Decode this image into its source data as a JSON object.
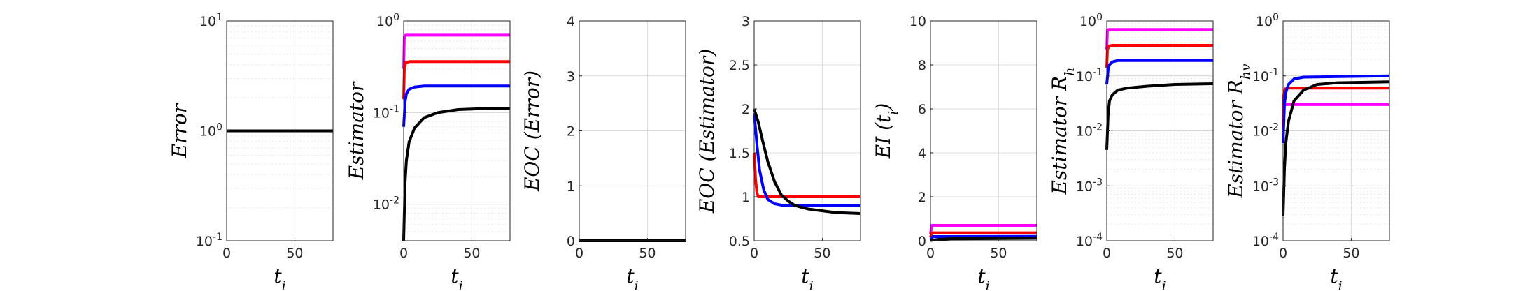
{
  "chart_data": [
    {
      "type": "line",
      "ylabel": "Error",
      "xlabel": "t",
      "xlabel_sub": "i",
      "yscale": "log",
      "xlim": [
        0,
        78
      ],
      "ylim": [
        0.1,
        10
      ],
      "xticks": [
        {
          "v": 0,
          "label": "0"
        },
        {
          "v": 50,
          "label": "50"
        }
      ],
      "yticks": [
        {
          "v": 0.1,
          "base": "10",
          "exp": "-1"
        },
        {
          "v": 1,
          "base": "10",
          "exp": "0"
        },
        {
          "v": 10,
          "base": "10",
          "exp": "1"
        }
      ],
      "grid": true,
      "series": [
        {
          "color": "#000000",
          "points": [
            [
              0,
              1
            ],
            [
              78,
              1
            ]
          ]
        }
      ]
    },
    {
      "type": "line",
      "ylabel": "Estimator",
      "xlabel": "t",
      "xlabel_sub": "i",
      "yscale": "log",
      "xlim": [
        0,
        78
      ],
      "ylim": [
        0.004,
        1
      ],
      "xticks": [
        {
          "v": 0,
          "label": "0"
        },
        {
          "v": 50,
          "label": "50"
        }
      ],
      "yticks": [
        {
          "v": 0.01,
          "base": "10",
          "exp": "-2"
        },
        {
          "v": 0.1,
          "base": "10",
          "exp": "-1"
        },
        {
          "v": 1,
          "base": "10",
          "exp": "0"
        }
      ],
      "grid": true,
      "series": [
        {
          "color": "#ff00ff",
          "points": [
            [
              0,
              0.3
            ],
            [
              0.5,
              0.68
            ],
            [
              1.5,
              0.7
            ],
            [
              78,
              0.7
            ]
          ]
        },
        {
          "color": "#ff0000",
          "points": [
            [
              0,
              0.14
            ],
            [
              0.5,
              0.3
            ],
            [
              1.5,
              0.35
            ],
            [
              4,
              0.36
            ],
            [
              78,
              0.36
            ]
          ]
        },
        {
          "color": "#0000ff",
          "points": [
            [
              0,
              0.07
            ],
            [
              1,
              0.13
            ],
            [
              2,
              0.16
            ],
            [
              4,
              0.18
            ],
            [
              8,
              0.19
            ],
            [
              15,
              0.195
            ],
            [
              78,
              0.195
            ]
          ]
        },
        {
          "color": "#000000",
          "points": [
            [
              0,
              0.004
            ],
            [
              1,
              0.017
            ],
            [
              2,
              0.03
            ],
            [
              4,
              0.048
            ],
            [
              8,
              0.068
            ],
            [
              15,
              0.088
            ],
            [
              25,
              0.1
            ],
            [
              40,
              0.108
            ],
            [
              55,
              0.11
            ],
            [
              78,
              0.111
            ]
          ]
        }
      ]
    },
    {
      "type": "line",
      "ylabel": "EOC (Error)",
      "xlabel": "t",
      "xlabel_sub": "i",
      "yscale": "linear",
      "xlim": [
        0,
        78
      ],
      "ylim": [
        0,
        4
      ],
      "xticks": [
        {
          "v": 0,
          "label": "0"
        },
        {
          "v": 50,
          "label": "50"
        }
      ],
      "yticks": [
        {
          "v": 0,
          "label": "0"
        },
        {
          "v": 1,
          "label": "1"
        },
        {
          "v": 2,
          "label": "2"
        },
        {
          "v": 3,
          "label": "3"
        },
        {
          "v": 4,
          "label": "4"
        }
      ],
      "grid": true,
      "series": [
        {
          "color": "#000000",
          "points": [
            [
              0,
              0
            ],
            [
              78,
              0
            ]
          ]
        }
      ]
    },
    {
      "type": "line",
      "ylabel": "EOC (Estimator)",
      "xlabel": "t",
      "xlabel_sub": "i",
      "yscale": "linear",
      "xlim": [
        0,
        78
      ],
      "ylim": [
        0.5,
        3
      ],
      "xticks": [
        {
          "v": 0,
          "label": "0"
        },
        {
          "v": 50,
          "label": "50"
        }
      ],
      "yticks": [
        {
          "v": 0.5,
          "label": "0.5"
        },
        {
          "v": 1,
          "label": "1"
        },
        {
          "v": 1.5,
          "label": "1.5"
        },
        {
          "v": 2,
          "label": "2"
        },
        {
          "v": 2.5,
          "label": "2.5"
        },
        {
          "v": 3,
          "label": "3"
        }
      ],
      "grid": true,
      "series": [
        {
          "color": "#ff0000",
          "points": [
            [
              0,
              1.5
            ],
            [
              1,
              1.2
            ],
            [
              2,
              1.05
            ],
            [
              3,
              1.0
            ],
            [
              78,
              1.0
            ]
          ]
        },
        {
          "color": "#0000ff",
          "points": [
            [
              0,
              1.95
            ],
            [
              2,
              1.6
            ],
            [
              4,
              1.3
            ],
            [
              7,
              1.08
            ],
            [
              10,
              0.97
            ],
            [
              15,
              0.92
            ],
            [
              20,
              0.905
            ],
            [
              78,
              0.9
            ]
          ]
        },
        {
          "color": "#000000",
          "points": [
            [
              0,
              2.0
            ],
            [
              3,
              1.85
            ],
            [
              6,
              1.65
            ],
            [
              10,
              1.4
            ],
            [
              15,
              1.17
            ],
            [
              20,
              1.02
            ],
            [
              25,
              0.95
            ],
            [
              30,
              0.9
            ],
            [
              40,
              0.86
            ],
            [
              50,
              0.84
            ],
            [
              60,
              0.82
            ],
            [
              78,
              0.81
            ]
          ]
        }
      ]
    },
    {
      "type": "line",
      "ylabel": "EI (t",
      "ylabel_sub": "i",
      "ylabel_close": ")",
      "xlabel": "t",
      "xlabel_sub": "i",
      "yscale": "linear",
      "xlim": [
        0,
        78
      ],
      "ylim": [
        0,
        10
      ],
      "xticks": [
        {
          "v": 0,
          "label": "0"
        },
        {
          "v": 50,
          "label": "50"
        }
      ],
      "yticks": [
        {
          "v": 0,
          "label": "0"
        },
        {
          "v": 2,
          "label": "2"
        },
        {
          "v": 4,
          "label": "4"
        },
        {
          "v": 6,
          "label": "6"
        },
        {
          "v": 8,
          "label": "8"
        },
        {
          "v": 10,
          "label": "10"
        }
      ],
      "grid": true,
      "series": [
        {
          "color": "#ff00ff",
          "points": [
            [
              0,
              0.3
            ],
            [
              1,
              0.7
            ],
            [
              78,
              0.7
            ]
          ]
        },
        {
          "color": "#ff0000",
          "points": [
            [
              0,
              0.15
            ],
            [
              1,
              0.36
            ],
            [
              78,
              0.36
            ]
          ]
        },
        {
          "color": "#0000ff",
          "points": [
            [
              0,
              0.08
            ],
            [
              2,
              0.19
            ],
            [
              78,
              0.2
            ]
          ]
        },
        {
          "color": "#000000",
          "points": [
            [
              0,
              0.01
            ],
            [
              5,
              0.06
            ],
            [
              15,
              0.09
            ],
            [
              78,
              0.11
            ]
          ]
        }
      ]
    },
    {
      "type": "line",
      "ylabel": "Estimator R",
      "ylabel_sub": "h",
      "xlabel": "t",
      "xlabel_sub": "i",
      "yscale": "log",
      "xlim": [
        0,
        78
      ],
      "ylim": [
        0.0001,
        1
      ],
      "xticks": [
        {
          "v": 0,
          "label": "0"
        },
        {
          "v": 50,
          "label": "50"
        }
      ],
      "yticks": [
        {
          "v": 0.0001,
          "base": "10",
          "exp": "-4"
        },
        {
          "v": 0.001,
          "base": "10",
          "exp": "-3"
        },
        {
          "v": 0.01,
          "base": "10",
          "exp": "-2"
        },
        {
          "v": 0.1,
          "base": "10",
          "exp": "-1"
        },
        {
          "v": 1,
          "base": "10",
          "exp": "0"
        }
      ],
      "grid": true,
      "series": [
        {
          "color": "#ff00ff",
          "points": [
            [
              0,
              0.3
            ],
            [
              0.5,
              0.68
            ],
            [
              1.5,
              0.7
            ],
            [
              78,
              0.7
            ]
          ]
        },
        {
          "color": "#ff0000",
          "points": [
            [
              0,
              0.14
            ],
            [
              0.5,
              0.3
            ],
            [
              1.5,
              0.35
            ],
            [
              4,
              0.36
            ],
            [
              78,
              0.36
            ]
          ]
        },
        {
          "color": "#0000ff",
          "points": [
            [
              0,
              0.07
            ],
            [
              1,
              0.13
            ],
            [
              2,
              0.16
            ],
            [
              4,
              0.18
            ],
            [
              8,
              0.19
            ],
            [
              78,
              0.19
            ]
          ]
        },
        {
          "color": "#000000",
          "points": [
            [
              0,
              0.0045
            ],
            [
              1,
              0.02
            ],
            [
              2,
              0.035
            ],
            [
              4,
              0.045
            ],
            [
              8,
              0.055
            ],
            [
              15,
              0.06
            ],
            [
              30,
              0.065
            ],
            [
              50,
              0.07
            ],
            [
              78,
              0.072
            ]
          ]
        }
      ]
    },
    {
      "type": "line",
      "ylabel": "Estimator R",
      "ylabel_sub": "hv",
      "xlabel": "t",
      "xlabel_sub": "i",
      "yscale": "log",
      "xlim": [
        0,
        78
      ],
      "ylim": [
        0.0001,
        1
      ],
      "xticks": [
        {
          "v": 0,
          "label": "0"
        },
        {
          "v": 50,
          "label": "50"
        }
      ],
      "yticks": [
        {
          "v": 0.0001,
          "base": "10",
          "exp": "-4"
        },
        {
          "v": 0.001,
          "base": "10",
          "exp": "-3"
        },
        {
          "v": 0.01,
          "base": "10",
          "exp": "-2"
        },
        {
          "v": 0.1,
          "base": "10",
          "exp": "-1"
        },
        {
          "v": 1,
          "base": "10",
          "exp": "0"
        }
      ],
      "grid": true,
      "series": [
        {
          "color": "#ff00ff",
          "points": [
            [
              0,
              0.006
            ],
            [
              0.5,
              0.028
            ],
            [
              1.5,
              0.03
            ],
            [
              78,
              0.03
            ]
          ]
        },
        {
          "color": "#ff0000",
          "points": [
            [
              0,
              0.012
            ],
            [
              0.5,
              0.045
            ],
            [
              1.5,
              0.058
            ],
            [
              4,
              0.06
            ],
            [
              78,
              0.06
            ]
          ]
        },
        {
          "color": "#0000ff",
          "points": [
            [
              0,
              0.006
            ],
            [
              1,
              0.03
            ],
            [
              2,
              0.05
            ],
            [
              4,
              0.07
            ],
            [
              8,
              0.088
            ],
            [
              15,
              0.095
            ],
            [
              78,
              0.1
            ]
          ]
        },
        {
          "color": "#000000",
          "points": [
            [
              0,
              0.00028
            ],
            [
              1,
              0.002
            ],
            [
              2,
              0.006
            ],
            [
              4,
              0.015
            ],
            [
              8,
              0.035
            ],
            [
              15,
              0.055
            ],
            [
              25,
              0.07
            ],
            [
              40,
              0.075
            ],
            [
              78,
              0.078
            ]
          ]
        }
      ]
    }
  ]
}
